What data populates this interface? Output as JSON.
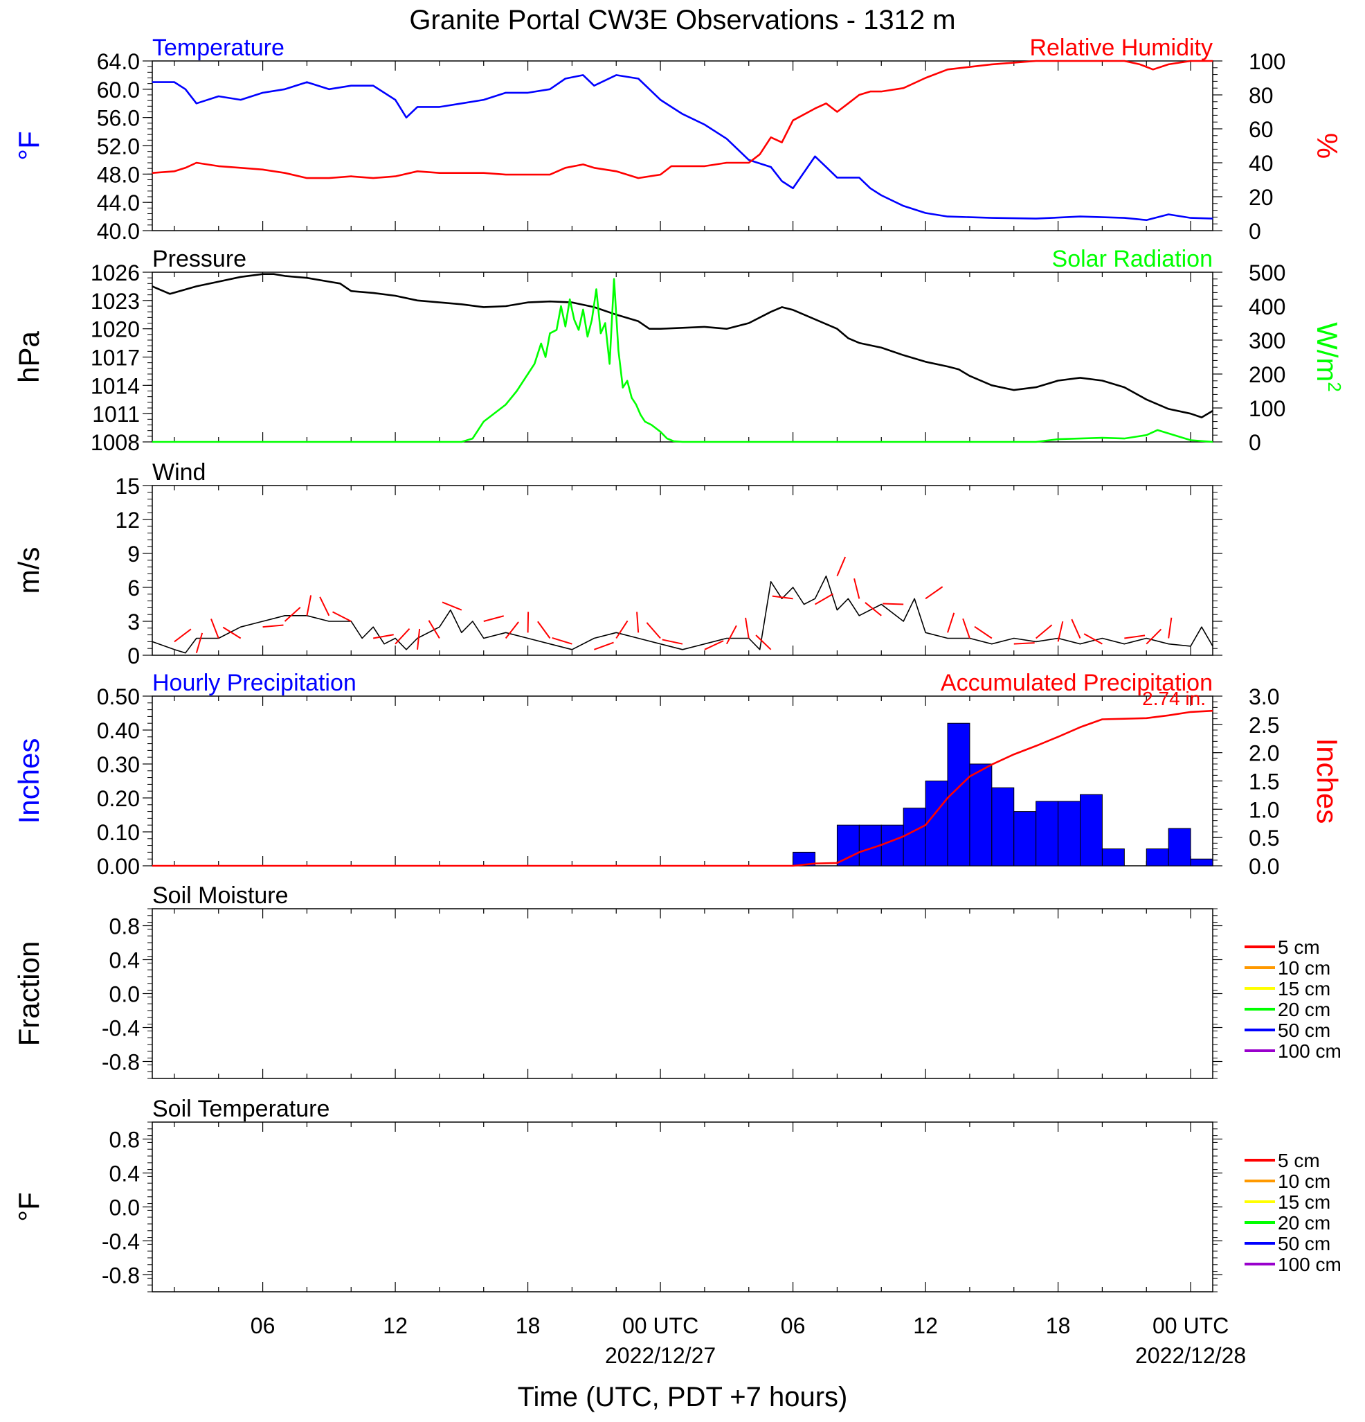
{
  "figure": {
    "title": "Granite Portal CW3E Observations - 1312 m",
    "xlabel": "Time (UTC, PDT +7 hours)",
    "x_ticks": [
      "06",
      "12",
      "18",
      "00 UTC",
      "06",
      "12",
      "18",
      "00 UTC"
    ],
    "x_dates": [
      "2022/12/27",
      "2022/12/28"
    ]
  },
  "colors": {
    "temperature": "#0000ff",
    "humidity": "#ff0000",
    "pressure": "#000000",
    "solar": "#00ff00",
    "wind": "#000000",
    "barbs": "#ff0000",
    "hourly_precip": "#0000ff",
    "accum_precip": "#ff0000",
    "soil_5": "#ff0000",
    "soil_10": "#ff9900",
    "soil_15": "#ffff00",
    "soil_20": "#00ff00",
    "soil_50": "#0000ff",
    "soil_100": "#9900cc"
  },
  "chart_data": [
    {
      "type": "line",
      "panel": "temperature-humidity",
      "left_title": "Temperature",
      "right_title": "Relative Humidity",
      "ylabel_left": "°F",
      "ylabel_right": "%",
      "ylim_left": [
        40,
        64
      ],
      "ylim_right": [
        0,
        100
      ],
      "y_ticks_left": [
        "64.0",
        "60.0",
        "56.0",
        "52.0",
        "48.0",
        "44.0",
        "40.0"
      ],
      "y_ticks_right": [
        "100",
        "80",
        "60",
        "40",
        "20",
        "0"
      ],
      "x_unit": "hours since 2022-12-26 01:00 UTC",
      "xlim": [
        0,
        48
      ],
      "series": [
        {
          "name": "Temperature",
          "axis": "left",
          "x": [
            0,
            1,
            1.5,
            2,
            3,
            4,
            5,
            6,
            7,
            8,
            9,
            10,
            11,
            11.5,
            12,
            13,
            14,
            15,
            16,
            17,
            18,
            18.7,
            19.5,
            20,
            21,
            22,
            23,
            23.5,
            24,
            25,
            26,
            27,
            28,
            28.5,
            29,
            30,
            30.5,
            31,
            31.5,
            32,
            32.5,
            33,
            34,
            35,
            36,
            38,
            40,
            42,
            44,
            45,
            46,
            47,
            48
          ],
          "y": [
            61,
            61,
            60,
            58,
            59,
            58.5,
            59.5,
            60,
            61,
            60,
            60.5,
            60.5,
            58.5,
            56,
            57.5,
            57.5,
            58,
            58.5,
            59.5,
            59.5,
            60,
            61.5,
            62,
            60.5,
            62,
            61.5,
            58.5,
            57.5,
            56.5,
            55,
            53,
            50,
            49,
            47,
            46,
            50.5,
            49,
            47.5,
            47.5,
            47.5,
            46,
            45,
            43.5,
            42.5,
            42,
            41.8,
            41.7,
            42,
            41.8,
            41.5,
            42.3,
            41.8,
            41.7
          ]
        },
        {
          "name": "Relative Humidity",
          "axis": "right",
          "x": [
            0,
            1,
            1.5,
            2,
            3,
            4,
            5,
            6,
            7,
            8,
            9,
            10,
            11,
            12,
            13,
            14,
            15,
            16,
            17,
            18,
            18.7,
            19.5,
            20,
            21,
            22,
            23,
            23.5,
            24,
            25,
            26,
            27,
            27.5,
            28,
            28.5,
            29,
            30,
            30.5,
            31,
            31.5,
            32,
            32.5,
            33,
            34,
            35,
            36,
            38,
            40,
            42,
            44,
            44.7,
            45.3,
            46,
            47,
            48
          ],
          "y": [
            34,
            35,
            37,
            40,
            38,
            37,
            36,
            34,
            31,
            31,
            32,
            31,
            32,
            35,
            34,
            34,
            34,
            33,
            33,
            33,
            37,
            39,
            37,
            35,
            31,
            33,
            38,
            38,
            38,
            40,
            40,
            45,
            55,
            52,
            65,
            72,
            75,
            70,
            75,
            80,
            82,
            82,
            84,
            90,
            95,
            98,
            100,
            100,
            100,
            98,
            95,
            98,
            100,
            100
          ]
        }
      ]
    },
    {
      "type": "line",
      "panel": "pressure-solar",
      "left_title": "Pressure",
      "right_title": "Solar Radiation",
      "ylabel_left": "hPa",
      "ylabel_right_main": "W/m",
      "ylabel_right_sup": "2",
      "ylim_left": [
        1008,
        1026
      ],
      "ylim_right": [
        0,
        500
      ],
      "y_ticks_left": [
        "1026",
        "1023",
        "1020",
        "1017",
        "1014",
        "1011",
        "1008"
      ],
      "y_ticks_right": [
        "500",
        "400",
        "300",
        "200",
        "100",
        "0"
      ],
      "x_unit": "hours since 2022-12-26 01:00 UTC",
      "xlim": [
        0,
        48
      ],
      "series": [
        {
          "name": "Pressure",
          "axis": "left",
          "x": [
            0,
            0.8,
            2,
            3,
            4,
            5,
            5.5,
            6,
            7,
            8,
            8.5,
            9,
            10,
            11,
            12,
            13,
            14,
            15,
            16,
            17,
            18,
            19,
            20,
            21,
            22,
            22.5,
            23,
            24,
            25,
            26,
            27,
            28,
            28.5,
            29,
            30,
            31,
            31.5,
            32,
            33,
            34,
            35,
            36,
            36.5,
            37,
            38,
            39,
            40,
            41,
            42,
            43,
            44,
            45,
            46,
            47,
            47.5,
            48
          ],
          "y": [
            1024.5,
            1023.7,
            1024.5,
            1025,
            1025.5,
            1025.8,
            1025.8,
            1025.6,
            1025.4,
            1025,
            1024.8,
            1024,
            1023.8,
            1023.5,
            1023,
            1022.8,
            1022.6,
            1022.3,
            1022.4,
            1022.8,
            1022.9,
            1022.8,
            1022.3,
            1021.5,
            1020.8,
            1020,
            1020,
            1020.1,
            1020.2,
            1020,
            1020.6,
            1021.8,
            1022.3,
            1022,
            1021,
            1020,
            1019,
            1018.5,
            1018,
            1017.2,
            1016.5,
            1016,
            1015.7,
            1015,
            1014,
            1013.5,
            1013.8,
            1014.5,
            1014.8,
            1014.5,
            1013.8,
            1012.5,
            1011.5,
            1011,
            1010.6,
            1011.3
          ]
        },
        {
          "name": "Solar Radiation",
          "axis": "right",
          "x": [
            0,
            14,
            14.5,
            15,
            16,
            16.5,
            17,
            17.3,
            17.6,
            17.8,
            18,
            18.3,
            18.5,
            18.7,
            18.9,
            19.1,
            19.3,
            19.5,
            19.7,
            19.9,
            20.1,
            20.3,
            20.5,
            20.7,
            20.9,
            21.1,
            21.3,
            21.5,
            21.7,
            21.9,
            22.1,
            22.3,
            22.6,
            23,
            23.3,
            23.6,
            24,
            40,
            41,
            43,
            44,
            44.5,
            45,
            45.5,
            46,
            46.5,
            47,
            48
          ],
          "y": [
            0,
            0,
            10,
            60,
            110,
            150,
            200,
            230,
            290,
            250,
            320,
            330,
            400,
            340,
            420,
            360,
            330,
            390,
            310,
            360,
            450,
            320,
            350,
            230,
            480,
            270,
            160,
            180,
            130,
            110,
            80,
            60,
            50,
            30,
            10,
            2,
            0,
            0,
            8,
            12,
            10,
            15,
            20,
            35,
            25,
            15,
            5,
            0
          ]
        }
      ]
    },
    {
      "type": "line",
      "panel": "wind",
      "left_title": "Wind",
      "ylabel_left": "m/s",
      "ylim_left": [
        0,
        15
      ],
      "y_ticks_left": [
        "15",
        "12",
        "9",
        "6",
        "3",
        "0"
      ],
      "x_unit": "hours since 2022-12-26 01:00 UTC",
      "xlim": [
        0,
        48
      ],
      "series": [
        {
          "name": "Wind",
          "x": [
            0,
            1,
            1.5,
            2,
            3,
            4,
            5,
            6,
            7,
            8,
            9,
            9.5,
            10,
            10.5,
            11,
            11.5,
            12,
            13,
            13.5,
            14,
            14.5,
            15,
            16,
            17,
            18,
            19,
            20,
            21,
            22,
            23,
            24,
            25,
            26,
            27,
            27.5,
            28,
            28.5,
            29,
            29.5,
            30,
            30.5,
            31,
            31.5,
            32,
            33,
            34,
            34.5,
            35,
            36,
            37,
            38,
            39,
            40,
            41,
            42,
            43,
            44,
            45,
            46,
            47,
            47.5,
            48
          ],
          "y": [
            1.2,
            0.5,
            0.2,
            1.5,
            1.5,
            2.5,
            3.0,
            3.5,
            3.5,
            3.0,
            3.0,
            1.5,
            2.5,
            1.0,
            1.5,
            0.5,
            1.5,
            2.5,
            4.0,
            2.0,
            3.0,
            1.5,
            2.0,
            1.5,
            1.0,
            0.5,
            1.5,
            2.0,
            1.5,
            1.0,
            0.5,
            1.0,
            1.5,
            1.5,
            0.5,
            6.5,
            5.0,
            6.0,
            4.5,
            5.0,
            7.0,
            4.0,
            5.0,
            3.5,
            4.5,
            3.0,
            5.0,
            2.0,
            1.5,
            1.5,
            1.0,
            1.5,
            1.2,
            1.5,
            1.0,
            1.5,
            1.0,
            1.5,
            1.0,
            0.8,
            2.5,
            0.8
          ]
        }
      ]
    },
    {
      "type": "bar",
      "panel": "precipitation",
      "left_title": "Hourly Precipitation",
      "right_title": "Accumulated Precipitation",
      "annotation": "2.74 in.",
      "ylabel_left": "Inches",
      "ylabel_right": "Inches",
      "ylim_left": [
        0,
        0.5
      ],
      "ylim_right": [
        0,
        3.0
      ],
      "y_ticks_left": [
        "0.50",
        "0.40",
        "0.30",
        "0.20",
        "0.10",
        "0.00"
      ],
      "y_ticks_right": [
        "3.0",
        "2.5",
        "2.0",
        "1.5",
        "1.0",
        "0.5",
        "0.0"
      ],
      "x_unit": "hour index from 2022-12-26 01:00 UTC (bar spans one hour)",
      "xlim": [
        0,
        48
      ],
      "bars": {
        "x": [
          29,
          30,
          31,
          32,
          33,
          34,
          35,
          36,
          37,
          38,
          39,
          40,
          41,
          42,
          43,
          44,
          45,
          46,
          47
        ],
        "values": [
          0.04,
          0.0,
          0.12,
          0.12,
          0.12,
          0.17,
          0.25,
          0.42,
          0.3,
          0.23,
          0.16,
          0.19,
          0.19,
          0.21,
          0.05,
          0.0,
          0.05,
          0.11,
          0.02
        ]
      },
      "series": [
        {
          "name": "Accumulated Precipitation",
          "axis": "right",
          "x": [
            0,
            29,
            30,
            31,
            32,
            33,
            34,
            35,
            36,
            37,
            38,
            39,
            40,
            41,
            42,
            43,
            44,
            45,
            46,
            47,
            48
          ],
          "y": [
            0,
            0,
            0.04,
            0.05,
            0.24,
            0.37,
            0.52,
            0.72,
            1.2,
            1.58,
            1.79,
            1.97,
            2.12,
            2.28,
            2.45,
            2.59,
            2.6,
            2.61,
            2.66,
            2.72,
            2.74
          ]
        }
      ]
    },
    {
      "type": "line",
      "panel": "soil-moisture",
      "left_title": "Soil Moisture",
      "ylabel_left": "Fraction",
      "ylim_left": [
        -1,
        1
      ],
      "y_ticks_left": [
        "0.8",
        "0.4",
        "0.0",
        "-0.4",
        "-0.8"
      ],
      "legend": [
        "5 cm",
        "10 cm",
        "15 cm",
        "20 cm",
        "50 cm",
        "100 cm"
      ],
      "series": []
    },
    {
      "type": "line",
      "panel": "soil-temperature",
      "left_title": "Soil Temperature",
      "ylabel_left": "°F",
      "ylim_left": [
        -1,
        1
      ],
      "y_ticks_left": [
        "0.8",
        "0.4",
        "0.0",
        "-0.4",
        "-0.8"
      ],
      "legend": [
        "5 cm",
        "10 cm",
        "15 cm",
        "20 cm",
        "50 cm",
        "100 cm"
      ],
      "series": []
    }
  ]
}
